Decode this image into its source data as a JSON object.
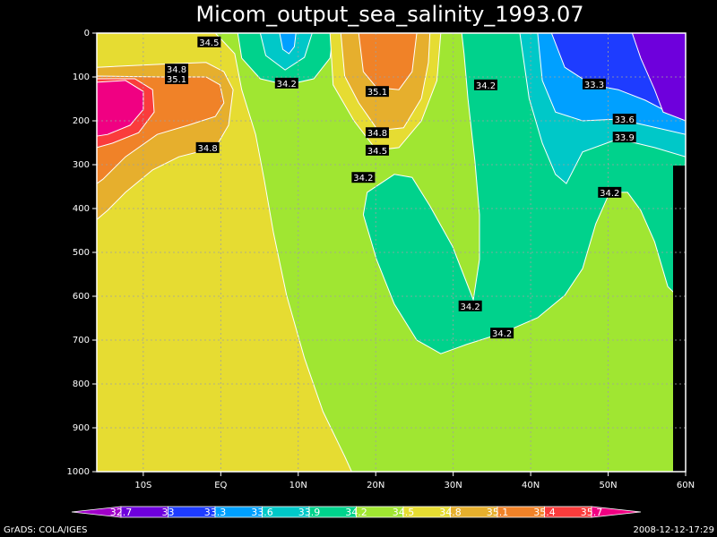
{
  "chart_data": {
    "type": "contour",
    "title": "Micom_output_sea_salinity_1993.07",
    "xlim": [
      -16,
      60
    ],
    "ylim": [
      1000,
      0
    ],
    "xticks": [
      {
        "value": -10,
        "label": "10S"
      },
      {
        "value": 0,
        "label": "EQ"
      },
      {
        "value": 10,
        "label": "10N"
      },
      {
        "value": 20,
        "label": "20N"
      },
      {
        "value": 30,
        "label": "30N"
      },
      {
        "value": 40,
        "label": "40N"
      },
      {
        "value": 50,
        "label": "50N"
      },
      {
        "value": 60,
        "label": "60N"
      }
    ],
    "yticks": [
      0,
      100,
      200,
      300,
      400,
      500,
      600,
      700,
      800,
      900,
      1000
    ],
    "grid": true,
    "levels": [
      32.7,
      33,
      33.3,
      33.6,
      33.9,
      34.2,
      34.5,
      34.8,
      35.1,
      35.4,
      35.7
    ],
    "colors": [
      "#a000c8",
      "#6e00dc",
      "#1e3cff",
      "#00a0ff",
      "#00c8c8",
      "#00d28c",
      "#a0e632",
      "#e6dc32",
      "#e6af2d",
      "#f08228",
      "#fa3c3c",
      "#f00082"
    ],
    "regions": [
      {
        "level": 34.2,
        "points": [
          [
            -16,
            0
          ],
          [
            60,
            0
          ],
          [
            60,
            1000
          ],
          [
            -16,
            1000
          ]
        ]
      },
      {
        "level": 34.5,
        "points": [
          [
            -16,
            0
          ],
          [
            -0.7,
            0
          ],
          [
            1.8,
            47
          ],
          [
            2.7,
            129
          ],
          [
            4.5,
            231
          ],
          [
            5.6,
            333
          ],
          [
            6.8,
            455
          ],
          [
            8.5,
            598
          ],
          [
            10.8,
            741
          ],
          [
            13.2,
            863
          ],
          [
            16.0,
            965
          ],
          [
            16.9,
            1000
          ],
          [
            -16,
            1000
          ]
        ]
      },
      {
        "level": 34.8,
        "points": [
          [
            -16,
            78
          ],
          [
            -7.7,
            71
          ],
          [
            -1.9,
            67
          ],
          [
            0.4,
            88
          ],
          [
            1.6,
            129
          ],
          [
            1.0,
            210
          ],
          [
            -0.7,
            261
          ],
          [
            -5.4,
            282
          ],
          [
            -8.8,
            312
          ],
          [
            -12.3,
            363
          ],
          [
            -14.6,
            404
          ],
          [
            -16,
            425
          ]
        ]
      },
      {
        "level": 35.1,
        "points": [
          [
            -16,
            98
          ],
          [
            -7.7,
            100
          ],
          [
            -1.9,
            100
          ],
          [
            -0.1,
            118
          ],
          [
            0.4,
            159
          ],
          [
            -0.7,
            190
          ],
          [
            -4.2,
            210
          ],
          [
            -8.2,
            231
          ],
          [
            -12.3,
            282
          ],
          [
            -15.2,
            333
          ],
          [
            -16,
            343
          ]
        ]
      },
      {
        "level": 35.4,
        "points": [
          [
            -16,
            104
          ],
          [
            -11.1,
            104
          ],
          [
            -8.8,
            129
          ],
          [
            -8.6,
            180
          ],
          [
            -10.6,
            227
          ],
          [
            -14.0,
            251
          ],
          [
            -16,
            261
          ]
        ]
      },
      {
        "level": 35.7,
        "points": [
          [
            -16,
            112
          ],
          [
            -12.3,
            108
          ],
          [
            -10.0,
            133
          ],
          [
            -10.0,
            174
          ],
          [
            -11.7,
            210
          ],
          [
            -14.6,
            231
          ],
          [
            -16,
            235
          ]
        ]
      },
      {
        "level": 33.9,
        "points": [
          [
            2.2,
            0
          ],
          [
            2.7,
            57
          ],
          [
            5.1,
            104
          ],
          [
            8.5,
            118
          ],
          [
            12.0,
            104
          ],
          [
            14.1,
            57
          ],
          [
            14.5,
            0
          ]
        ]
      },
      {
        "level": 33.6,
        "points": [
          [
            5.1,
            0
          ],
          [
            5.8,
            51
          ],
          [
            8.3,
            84
          ],
          [
            10.8,
            55
          ],
          [
            11.8,
            0
          ]
        ]
      },
      {
        "level": 33.3,
        "points": [
          [
            7.6,
            0
          ],
          [
            8.0,
            37
          ],
          [
            8.8,
            47
          ],
          [
            9.5,
            31
          ],
          [
            9.7,
            0
          ]
        ]
      },
      {
        "level": 34.5,
        "points": [
          [
            14.1,
            0
          ],
          [
            14.5,
            118
          ],
          [
            17.2,
            200
          ],
          [
            20.1,
            267
          ],
          [
            23.0,
            261
          ],
          [
            25.9,
            200
          ],
          [
            27.9,
            108
          ],
          [
            28.4,
            0
          ]
        ]
      },
      {
        "level": 34.8,
        "points": [
          [
            15.5,
            0
          ],
          [
            16.0,
            98
          ],
          [
            17.8,
            159
          ],
          [
            20.3,
            222
          ],
          [
            23.6,
            216
          ],
          [
            25.9,
            149
          ],
          [
            26.8,
            67
          ],
          [
            27.0,
            0
          ]
        ]
      },
      {
        "level": 35.1,
        "points": [
          [
            17.8,
            0
          ],
          [
            18.4,
            88
          ],
          [
            20.1,
            124
          ],
          [
            23.0,
            129
          ],
          [
            24.7,
            88
          ],
          [
            25.3,
            0
          ]
        ]
      },
      {
        "level": 33.9,
        "points": [
          [
            31.1,
            0
          ],
          [
            60,
            0
          ],
          [
            60,
            618
          ],
          [
            57.7,
            578
          ],
          [
            56.0,
            476
          ],
          [
            54.2,
            404
          ],
          [
            52.5,
            363
          ],
          [
            50.2,
            363
          ],
          [
            48.4,
            435
          ],
          [
            46.7,
            537
          ],
          [
            44.4,
            598
          ],
          [
            40.9,
            649
          ],
          [
            36.3,
            684
          ],
          [
            31.7,
            710
          ],
          [
            28.4,
            731
          ],
          [
            25.3,
            700
          ],
          [
            22.4,
            618
          ],
          [
            20.1,
            516
          ],
          [
            18.4,
            414
          ],
          [
            18.9,
            363
          ],
          [
            22.4,
            322
          ],
          [
            24.7,
            329
          ],
          [
            27.0,
            394
          ],
          [
            29.9,
            486
          ],
          [
            32.6,
            608
          ],
          [
            33.4,
            516
          ],
          [
            33.4,
            414
          ],
          [
            32.8,
            292
          ],
          [
            31.9,
            149
          ],
          [
            31.4,
            47
          ]
        ]
      },
      {
        "level": 33.6,
        "points": [
          [
            38.6,
            0
          ],
          [
            39.8,
            149
          ],
          [
            41.5,
            251
          ],
          [
            43.2,
            322
          ],
          [
            44.6,
            343
          ],
          [
            46.7,
            271
          ],
          [
            51.3,
            241
          ],
          [
            56.0,
            261
          ],
          [
            60,
            282
          ],
          [
            60,
            0
          ]
        ]
      },
      {
        "level": 33.3,
        "points": [
          [
            40.9,
            0
          ],
          [
            41.5,
            108
          ],
          [
            43.2,
            180
          ],
          [
            46.7,
            200
          ],
          [
            51.3,
            196
          ],
          [
            54.8,
            210
          ],
          [
            60,
            231
          ],
          [
            60,
            0
          ]
        ]
      },
      {
        "level": 33,
        "points": [
          [
            42.7,
            0
          ],
          [
            44.4,
            78
          ],
          [
            47.9,
            118
          ],
          [
            51.3,
            129
          ],
          [
            54.8,
            153
          ],
          [
            57.7,
            180
          ],
          [
            60,
            186
          ],
          [
            60,
            0
          ]
        ]
      },
      {
        "level": 32.7,
        "points": [
          [
            53.1,
            0
          ],
          [
            54.2,
            57
          ],
          [
            56.0,
            129
          ],
          [
            57.1,
            180
          ],
          [
            60,
            200
          ],
          [
            60,
            0
          ]
        ]
      }
    ],
    "contour_labels": [
      {
        "value": 34.5,
        "x": -1.5,
        "y": 20
      },
      {
        "value": 34.8,
        "x": -5.7,
        "y": 82
      },
      {
        "value": 35.1,
        "x": -5.7,
        "y": 104
      },
      {
        "value": 34.8,
        "x": -1.7,
        "y": 261
      },
      {
        "value": 34.2,
        "x": 8.5,
        "y": 114
      },
      {
        "value": 35.1,
        "x": 20.2,
        "y": 133
      },
      {
        "value": 34.8,
        "x": 20.2,
        "y": 227
      },
      {
        "value": 34.5,
        "x": 20.2,
        "y": 267
      },
      {
        "value": 34.2,
        "x": 18.4,
        "y": 329
      },
      {
        "value": 34.2,
        "x": 34.2,
        "y": 118
      },
      {
        "value": 33.3,
        "x": 48.2,
        "y": 116
      },
      {
        "value": 33.6,
        "x": 52.1,
        "y": 196
      },
      {
        "value": 33.9,
        "x": 52.1,
        "y": 237
      },
      {
        "value": 34.2,
        "x": 50.2,
        "y": 363
      },
      {
        "value": 34.2,
        "x": 32.2,
        "y": 622
      },
      {
        "value": 34.2,
        "x": 36.3,
        "y": 684
      }
    ],
    "credit": "GrADS: COLA/IGES",
    "timestamp": "2008-12-12-17:29"
  }
}
